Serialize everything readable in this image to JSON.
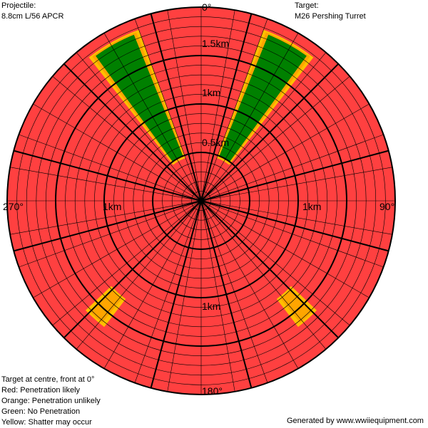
{
  "projectile": {
    "label": "Projectile:",
    "value": "8.8cm L/56 APCR"
  },
  "target": {
    "label": "Target:",
    "value": "M26 Pershing Turret"
  },
  "legend": {
    "note": "Target at centre, front at 0°",
    "items": [
      {
        "text": "Red: Penetration likely",
        "color": "#ff4040"
      },
      {
        "text": "Orange: Penetration unlikely",
        "color": "#ffa500"
      },
      {
        "text": "Green: No Penetration",
        "color": "#008000"
      },
      {
        "text": "Yellow: Shatter may occur",
        "color": "#ffc000"
      }
    ]
  },
  "credit": "Generated by www.wwiiequipment.com",
  "diagram": {
    "max_range_km": 2.0,
    "angle_labels": {
      "front": "0°",
      "right": "90°",
      "rear": "180°",
      "left": "270°"
    },
    "range_labels": {
      "r05": "0.5km",
      "r1": "1km",
      "r15": "1.5km"
    },
    "colors": {
      "penetration": "#ff4040",
      "no_penetration": "#008000",
      "unlikely": "#ffa500",
      "shatter": "#ffc000",
      "grid": "#000000"
    },
    "zones": [
      {
        "type": "no_penetration",
        "from_deg": 22,
        "to_deg": 36,
        "min_km": 0.5,
        "max_km": 1.85
      },
      {
        "type": "no_penetration",
        "from_deg": 324,
        "to_deg": 338,
        "min_km": 0.5,
        "max_km": 1.85
      },
      {
        "type": "unlikely",
        "from_deg": 135,
        "to_deg": 141,
        "min_km": 1.3,
        "max_km": 1.62
      },
      {
        "type": "unlikely",
        "from_deg": 219,
        "to_deg": 225,
        "min_km": 1.3,
        "max_km": 1.62
      }
    ]
  }
}
